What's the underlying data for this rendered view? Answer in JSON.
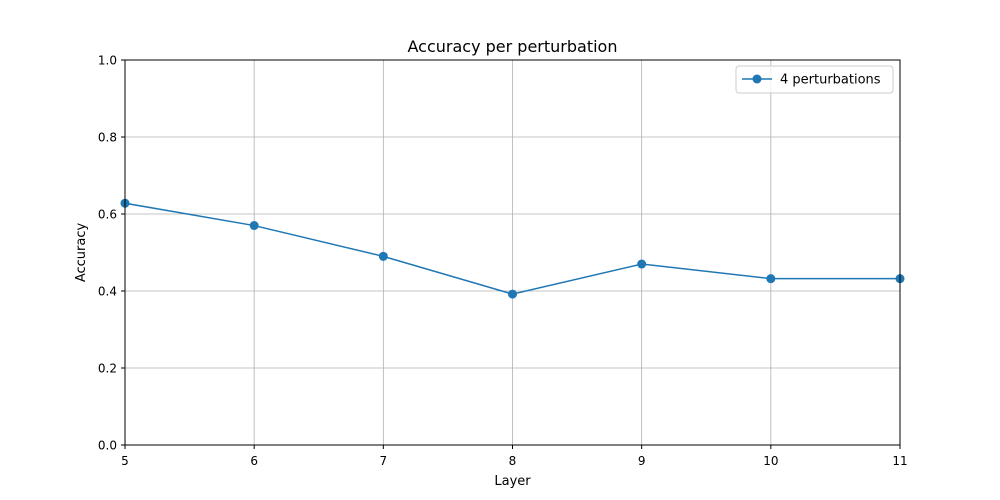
{
  "chart_data": {
    "type": "line",
    "title": "Accuracy per perturbation",
    "xlabel": "Layer",
    "ylabel": "Accuracy",
    "xlim": [
      5,
      11
    ],
    "ylim": [
      0.0,
      1.0
    ],
    "x_ticks": [
      5,
      6,
      7,
      8,
      9,
      10,
      11
    ],
    "x_tick_labels": [
      "5",
      "6",
      "7",
      "8",
      "9",
      "10",
      "11"
    ],
    "y_ticks": [
      0.0,
      0.2,
      0.4,
      0.6,
      0.8,
      1.0
    ],
    "y_tick_labels": [
      "0.0",
      "0.2",
      "0.4",
      "0.6",
      "0.8",
      "1.0"
    ],
    "grid": true,
    "legend_position": "top-right",
    "x": [
      5,
      6,
      7,
      8,
      9,
      10,
      11
    ],
    "series": [
      {
        "name": "4 perturbations",
        "color": "#1f77b4",
        "marker": "circle",
        "values": [
          0.628,
          0.57,
          0.49,
          0.392,
          0.47,
          0.432,
          0.432
        ]
      }
    ]
  }
}
